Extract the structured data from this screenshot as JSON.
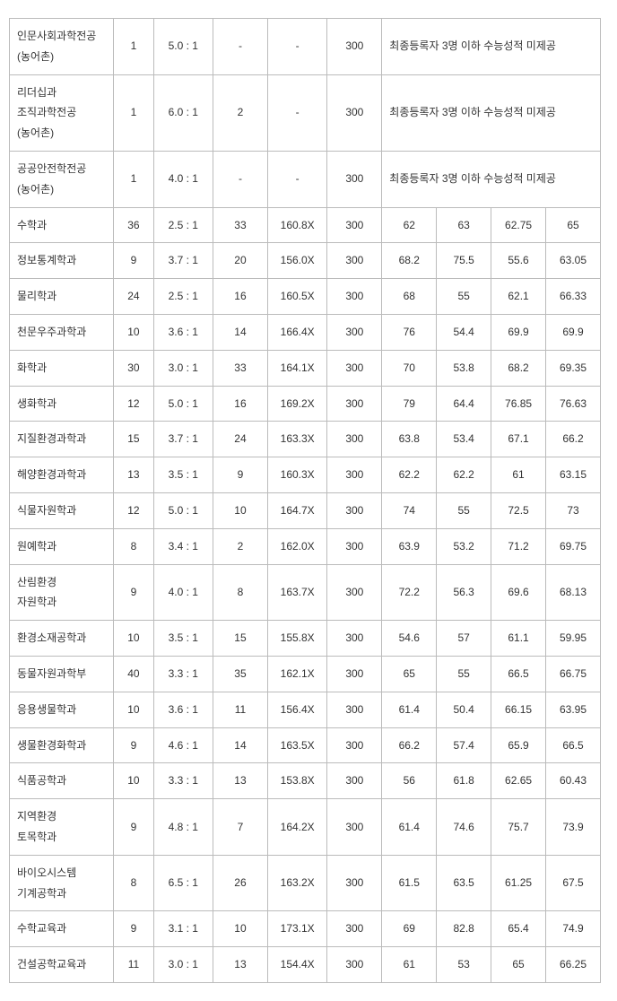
{
  "note_text": "최종등록자 3명 이하 수능성적 미제공",
  "special_rows": [
    {
      "name": "인문사회과학전공\n(농어촌)",
      "col1": "1",
      "col2": "5.0 : 1",
      "col3": "-",
      "col4": "-",
      "col5": "300"
    },
    {
      "name": "리더십과 조직과학전공\n(농어촌)",
      "col1": "1",
      "col2": "6.0 : 1",
      "col3": "2",
      "col4": "-",
      "col5": "300"
    },
    {
      "name": "공공안전학전공\n(농어촌)",
      "col1": "1",
      "col2": "4.0 : 1",
      "col3": "-",
      "col4": "-",
      "col5": "300"
    }
  ],
  "rows": [
    {
      "name": "수학과",
      "c1": "36",
      "c2": "2.5 : 1",
      "c3": "33",
      "c4": "160.8X",
      "c5": "300",
      "c6": "62",
      "c7": "63",
      "c8": "62.75",
      "c9": "65"
    },
    {
      "name": "정보통계학과",
      "c1": "9",
      "c2": "3.7 : 1",
      "c3": "20",
      "c4": "156.0X",
      "c5": "300",
      "c6": "68.2",
      "c7": "75.5",
      "c8": "55.6",
      "c9": "63.05"
    },
    {
      "name": "물리학과",
      "c1": "24",
      "c2": "2.5 : 1",
      "c3": "16",
      "c4": "160.5X",
      "c5": "300",
      "c6": "68",
      "c7": "55",
      "c8": "62.1",
      "c9": "66.33"
    },
    {
      "name": "천문우주과학과",
      "c1": "10",
      "c2": "3.6 : 1",
      "c3": "14",
      "c4": "166.4X",
      "c5": "300",
      "c6": "76",
      "c7": "54.4",
      "c8": "69.9",
      "c9": "69.9"
    },
    {
      "name": "화학과",
      "c1": "30",
      "c2": "3.0 : 1",
      "c3": "33",
      "c4": "164.1X",
      "c5": "300",
      "c6": "70",
      "c7": "53.8",
      "c8": "68.2",
      "c9": "69.35"
    },
    {
      "name": "생화학과",
      "c1": "12",
      "c2": "5.0 : 1",
      "c3": "16",
      "c4": "169.2X",
      "c5": "300",
      "c6": "79",
      "c7": "64.4",
      "c8": "76.85",
      "c9": "76.63"
    },
    {
      "name": "지질환경과학과",
      "c1": "15",
      "c2": "3.7 : 1",
      "c3": "24",
      "c4": "163.3X",
      "c5": "300",
      "c6": "63.8",
      "c7": "53.4",
      "c8": "67.1",
      "c9": "66.2"
    },
    {
      "name": "해양환경과학과",
      "c1": "13",
      "c2": "3.5 : 1",
      "c3": "9",
      "c4": "160.3X",
      "c5": "300",
      "c6": "62.2",
      "c7": "62.2",
      "c8": "61",
      "c9": "63.15"
    },
    {
      "name": "식물자원학과",
      "c1": "12",
      "c2": "5.0 : 1",
      "c3": "10",
      "c4": "164.7X",
      "c5": "300",
      "c6": "74",
      "c7": "55",
      "c8": "72.5",
      "c9": "73"
    },
    {
      "name": "원예학과",
      "c1": "8",
      "c2": "3.4 : 1",
      "c3": "2",
      "c4": "162.0X",
      "c5": "300",
      "c6": "63.9",
      "c7": "53.2",
      "c8": "71.2",
      "c9": "69.75"
    },
    {
      "name": "산림환경\n자원학과",
      "c1": "9",
      "c2": "4.0 : 1",
      "c3": "8",
      "c4": "163.7X",
      "c5": "300",
      "c6": "72.2",
      "c7": "56.3",
      "c8": "69.6",
      "c9": "68.13"
    },
    {
      "name": "환경소재공학과",
      "c1": "10",
      "c2": "3.5 : 1",
      "c3": "15",
      "c4": "155.8X",
      "c5": "300",
      "c6": "54.6",
      "c7": "57",
      "c8": "61.1",
      "c9": "59.95"
    },
    {
      "name": "동물자원과학부",
      "c1": "40",
      "c2": "3.3 : 1",
      "c3": "35",
      "c4": "162.1X",
      "c5": "300",
      "c6": "65",
      "c7": "55",
      "c8": "66.5",
      "c9": "66.75"
    },
    {
      "name": "응용생물학과",
      "c1": "10",
      "c2": "3.6 : 1",
      "c3": "11",
      "c4": "156.4X",
      "c5": "300",
      "c6": "61.4",
      "c7": "50.4",
      "c8": "66.15",
      "c9": "63.95"
    },
    {
      "name": "생물환경화학과",
      "c1": "9",
      "c2": "4.6 : 1",
      "c3": "14",
      "c4": "163.5X",
      "c5": "300",
      "c6": "66.2",
      "c7": "57.4",
      "c8": "65.9",
      "c9": "66.5"
    },
    {
      "name": "식품공학과",
      "c1": "10",
      "c2": "3.3 : 1",
      "c3": "13",
      "c4": "153.8X",
      "c5": "300",
      "c6": "56",
      "c7": "61.8",
      "c8": "62.65",
      "c9": "60.43"
    },
    {
      "name": "지역환경\n토목학과",
      "c1": "9",
      "c2": "4.8 : 1",
      "c3": "7",
      "c4": "164.2X",
      "c5": "300",
      "c6": "61.4",
      "c7": "74.6",
      "c8": "75.7",
      "c9": "73.9"
    },
    {
      "name": "바이오시스템\n기계공학과",
      "c1": "8",
      "c2": "6.5 : 1",
      "c3": "26",
      "c4": "163.2X",
      "c5": "300",
      "c6": "61.5",
      "c7": "63.5",
      "c8": "61.25",
      "c9": "67.5"
    },
    {
      "name": "수학교육과",
      "c1": "9",
      "c2": "3.1 : 1",
      "c3": "10",
      "c4": "173.1X",
      "c5": "300",
      "c6": "69",
      "c7": "82.8",
      "c8": "65.4",
      "c9": "74.9"
    },
    {
      "name": "건설공학교육과",
      "c1": "11",
      "c2": "3.0 : 1",
      "c3": "13",
      "c4": "154.4X",
      "c5": "300",
      "c6": "61",
      "c7": "53",
      "c8": "65",
      "c9": "66.25"
    }
  ]
}
